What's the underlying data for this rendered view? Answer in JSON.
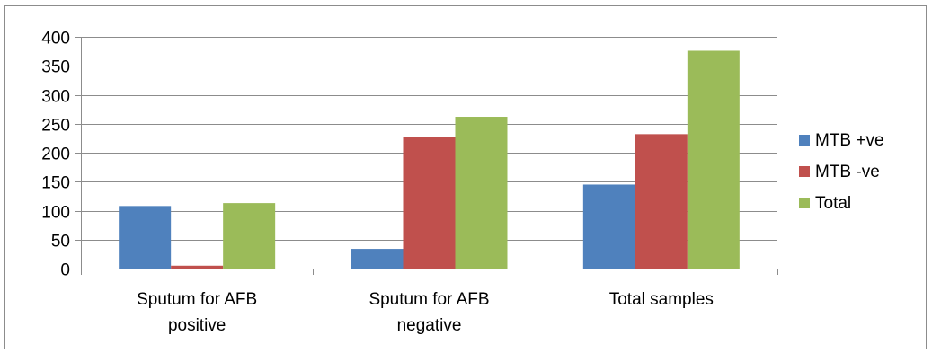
{
  "chart_data": {
    "type": "bar",
    "categories": [
      [
        "Sputum for AFB",
        "positive"
      ],
      [
        "Sputum for AFB",
        "negative"
      ],
      [
        "Total samples"
      ]
    ],
    "series": [
      {
        "name": "MTB +ve",
        "values": [
          108,
          34,
          145
        ],
        "color": "#4F81BD"
      },
      {
        "name": "MTB -ve",
        "values": [
          5,
          227,
          232
        ],
        "color": "#C0504D"
      },
      {
        "name": "Total",
        "values": [
          113,
          262,
          376
        ],
        "color": "#9BBB59"
      }
    ],
    "title": "",
    "xlabel": "",
    "ylabel": "",
    "ylim": [
      0,
      400
    ],
    "yticks": [
      0,
      50,
      100,
      150,
      200,
      250,
      300,
      350,
      400
    ],
    "grid": true,
    "legend_position": "right"
  }
}
